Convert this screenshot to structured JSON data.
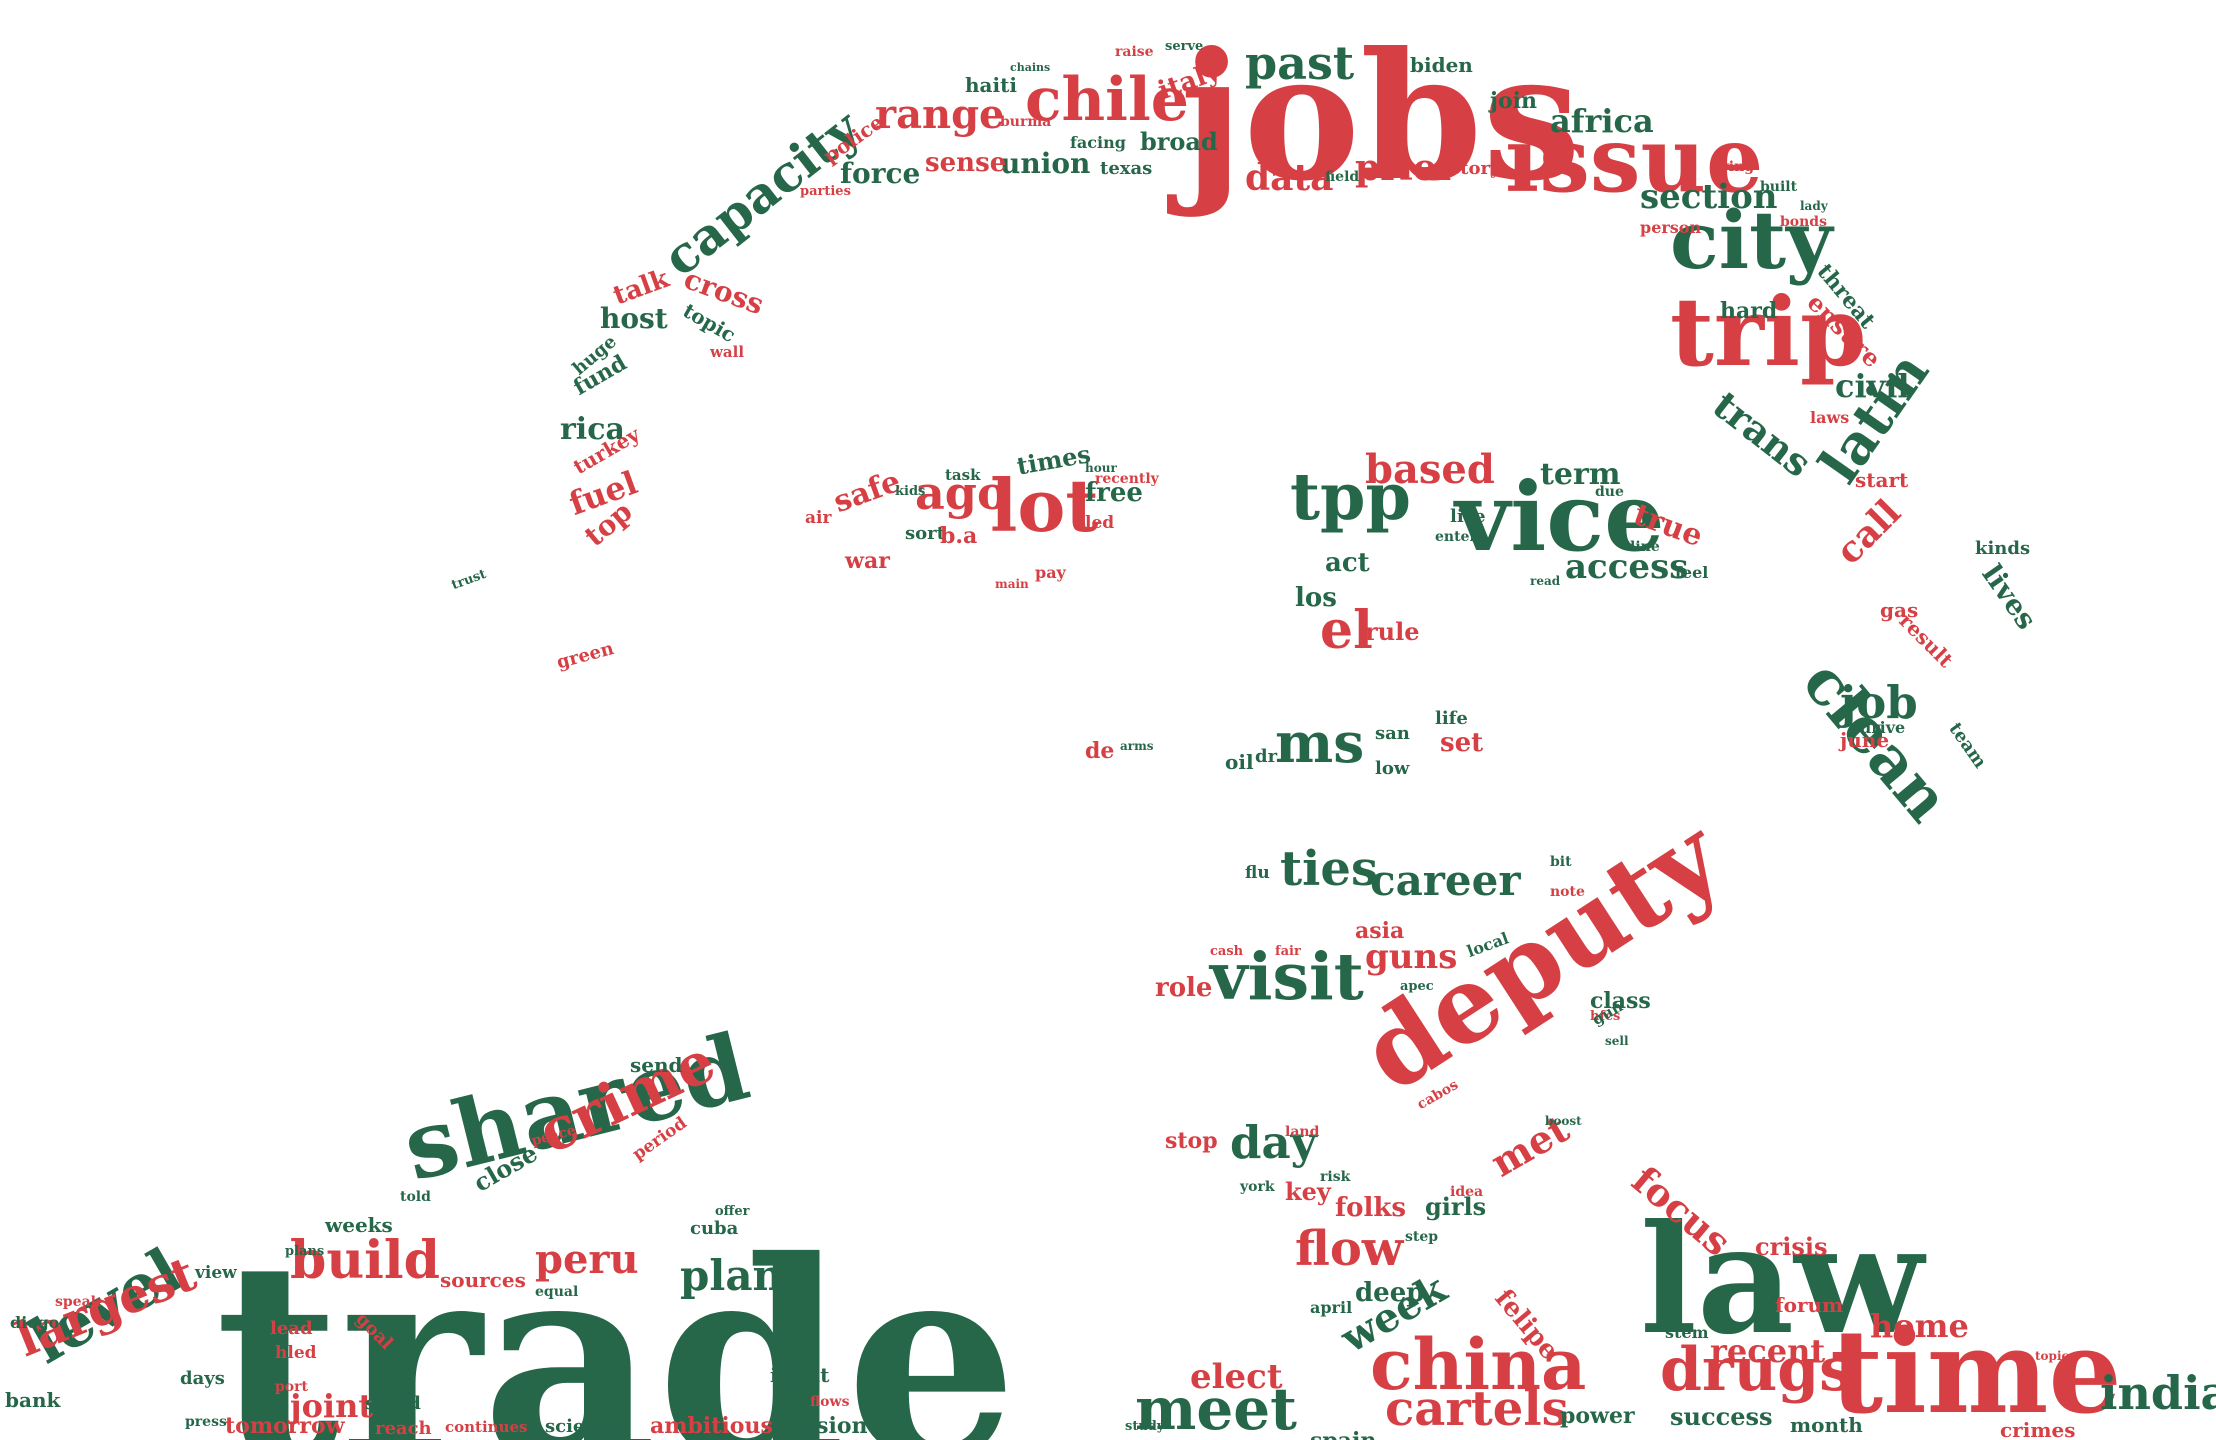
{
  "colors": {
    "red": "#d64045",
    "green": "#26674a"
  },
  "words": [
    {
      "text": "trade",
      "color": "green"
    },
    {
      "text": "jobs",
      "color": "red"
    },
    {
      "text": "deputy",
      "color": "red"
    },
    {
      "text": "law",
      "color": "green"
    },
    {
      "text": "time",
      "color": "red"
    },
    {
      "text": "shared",
      "color": "green"
    },
    {
      "text": "vice",
      "color": "green"
    },
    {
      "text": "issue",
      "color": "red"
    },
    {
      "text": "trip",
      "color": "red"
    },
    {
      "text": "city",
      "color": "green"
    },
    {
      "text": "china",
      "color": "red"
    },
    {
      "text": "visit",
      "color": "green"
    },
    {
      "text": "lot",
      "color": "red"
    },
    {
      "text": "tpp",
      "color": "green"
    },
    {
      "text": "meet",
      "color": "green"
    },
    {
      "text": "chile",
      "color": "red"
    },
    {
      "text": "clean",
      "color": "green"
    },
    {
      "text": "level",
      "color": "green"
    },
    {
      "text": "drugs",
      "color": "red"
    },
    {
      "text": "crime",
      "color": "red"
    },
    {
      "text": "capacity",
      "color": "green"
    },
    {
      "text": "cartels",
      "color": "red"
    },
    {
      "text": "latin",
      "color": "green"
    },
    {
      "text": "largest",
      "color": "red"
    },
    {
      "text": "ms",
      "color": "green"
    },
    {
      "text": "build",
      "color": "red"
    },
    {
      "text": "ties",
      "color": "green"
    },
    {
      "text": "past",
      "color": "green"
    },
    {
      "text": "india",
      "color": "green"
    },
    {
      "text": "flow",
      "color": "red"
    },
    {
      "text": "career",
      "color": "green"
    },
    {
      "text": "based",
      "color": "red"
    },
    {
      "text": "plan",
      "color": "green"
    },
    {
      "text": "peru",
      "color": "red"
    },
    {
      "text": "range",
      "color": "red"
    },
    {
      "text": "ago",
      "color": "red"
    },
    {
      "text": "el",
      "color": "red"
    },
    {
      "text": "data",
      "color": "red"
    },
    {
      "text": "prior",
      "color": "red"
    },
    {
      "text": "section",
      "color": "green"
    },
    {
      "text": "week",
      "color": "green"
    },
    {
      "text": "day",
      "color": "green"
    },
    {
      "text": "met",
      "color": "red"
    },
    {
      "text": "home",
      "color": "red"
    },
    {
      "text": "job",
      "color": "green"
    },
    {
      "text": "access",
      "color": "green"
    },
    {
      "text": "guns",
      "color": "red"
    },
    {
      "text": "trans",
      "color": "green"
    },
    {
      "text": "call",
      "color": "red"
    },
    {
      "text": "focus",
      "color": "red"
    },
    {
      "text": "recent",
      "color": "red"
    },
    {
      "text": "joint",
      "color": "red"
    },
    {
      "text": "africa",
      "color": "green"
    },
    {
      "text": "civil",
      "color": "green"
    },
    {
      "text": "elect",
      "color": "red"
    },
    {
      "text": "ambitious",
      "color": "red"
    },
    {
      "text": "tomorrow",
      "color": "red"
    },
    {
      "text": "success",
      "color": "green"
    },
    {
      "text": "force",
      "color": "green"
    },
    {
      "text": "union",
      "color": "green"
    },
    {
      "text": "sense",
      "color": "red"
    },
    {
      "text": "term",
      "color": "green"
    },
    {
      "text": "true",
      "color": "red"
    },
    {
      "text": "free",
      "color": "green"
    },
    {
      "text": "fuel",
      "color": "red"
    },
    {
      "text": "rica",
      "color": "green"
    },
    {
      "text": "host",
      "color": "green"
    },
    {
      "text": "talk",
      "color": "red"
    },
    {
      "text": "cross",
      "color": "red"
    },
    {
      "text": "safe",
      "color": "red"
    },
    {
      "text": "times",
      "color": "green"
    },
    {
      "text": "act",
      "color": "green"
    },
    {
      "text": "rule",
      "color": "red"
    },
    {
      "text": "set",
      "color": "red"
    },
    {
      "text": "los",
      "color": "green"
    },
    {
      "text": "role",
      "color": "red"
    },
    {
      "text": "asia",
      "color": "red"
    },
    {
      "text": "class",
      "color": "green"
    },
    {
      "text": "folks",
      "color": "red"
    },
    {
      "text": "key",
      "color": "red"
    },
    {
      "text": "girls",
      "color": "green"
    },
    {
      "text": "felipe",
      "color": "red"
    },
    {
      "text": "deep",
      "color": "green"
    },
    {
      "text": "spain",
      "color": "green"
    },
    {
      "text": "power",
      "color": "green"
    },
    {
      "text": "crisis",
      "color": "red"
    },
    {
      "text": "forum",
      "color": "red"
    },
    {
      "text": "month",
      "color": "green"
    },
    {
      "text": "crimes",
      "color": "red"
    },
    {
      "text": "lives",
      "color": "green"
    },
    {
      "text": "kinds",
      "color": "green"
    },
    {
      "text": "june",
      "color": "red"
    },
    {
      "text": "gas",
      "color": "red"
    },
    {
      "text": "result",
      "color": "red"
    },
    {
      "text": "team",
      "color": "green"
    },
    {
      "text": "drive",
      "color": "green"
    },
    {
      "text": "threat",
      "color": "green"
    },
    {
      "text": "ensure",
      "color": "red"
    },
    {
      "text": "hard",
      "color": "green"
    },
    {
      "text": "start",
      "color": "red"
    },
    {
      "text": "laws",
      "color": "red"
    },
    {
      "text": "living",
      "color": "red"
    },
    {
      "text": "bonds",
      "color": "red"
    },
    {
      "text": "built",
      "color": "green"
    },
    {
      "text": "person",
      "color": "red"
    },
    {
      "text": "lady",
      "color": "green"
    },
    {
      "text": "join",
      "color": "green"
    },
    {
      "text": "biden",
      "color": "green"
    },
    {
      "text": "story",
      "color": "red"
    },
    {
      "text": "field",
      "color": "green"
    },
    {
      "text": "italy",
      "color": "red"
    },
    {
      "text": "broad",
      "color": "green"
    },
    {
      "text": "texas",
      "color": "green"
    },
    {
      "text": "facing",
      "color": "green"
    },
    {
      "text": "haiti",
      "color": "green"
    },
    {
      "text": "raise",
      "color": "red"
    },
    {
      "text": "serve",
      "color": "green"
    },
    {
      "text": "burma",
      "color": "red"
    },
    {
      "text": "chains",
      "color": "green"
    },
    {
      "text": "police",
      "color": "red"
    },
    {
      "text": "parties",
      "color": "red"
    },
    {
      "text": "topic",
      "color": "green"
    },
    {
      "text": "wall",
      "color": "red"
    },
    {
      "text": "fund",
      "color": "green"
    },
    {
      "text": "huge",
      "color": "green"
    },
    {
      "text": "turkey",
      "color": "red"
    },
    {
      "text": "top",
      "color": "red"
    },
    {
      "text": "green",
      "color": "red"
    },
    {
      "text": "trust",
      "color": "green"
    },
    {
      "text": "war",
      "color": "red"
    },
    {
      "text": "sort",
      "color": "green"
    },
    {
      "text": "b.a",
      "color": "red"
    },
    {
      "text": "air",
      "color": "red"
    },
    {
      "text": "kids",
      "color": "green"
    },
    {
      "text": "task",
      "color": "green"
    },
    {
      "text": "pay",
      "color": "red"
    },
    {
      "text": "main",
      "color": "red"
    },
    {
      "text": "led",
      "color": "red"
    },
    {
      "text": "recently",
      "color": "red"
    },
    {
      "text": "hour",
      "color": "green"
    },
    {
      "text": "line",
      "color": "green"
    },
    {
      "text": "feel",
      "color": "green"
    },
    {
      "text": "due",
      "color": "green"
    },
    {
      "text": "live",
      "color": "green"
    },
    {
      "text": "enter",
      "color": "green"
    },
    {
      "text": "read",
      "color": "green"
    },
    {
      "text": "life",
      "color": "green"
    },
    {
      "text": "san",
      "color": "green"
    },
    {
      "text": "low",
      "color": "green"
    },
    {
      "text": "oil",
      "color": "green"
    },
    {
      "text": "dr",
      "color": "green"
    },
    {
      "text": "de",
      "color": "red"
    },
    {
      "text": "arms",
      "color": "green"
    },
    {
      "text": "flu",
      "color": "green"
    },
    {
      "text": "bit",
      "color": "green"
    },
    {
      "text": "note",
      "color": "red"
    },
    {
      "text": "local",
      "color": "green"
    },
    {
      "text": "cash",
      "color": "red"
    },
    {
      "text": "fair",
      "color": "red"
    },
    {
      "text": "apec",
      "color": "green"
    },
    {
      "text": "hfcs",
      "color": "red"
    },
    {
      "text": "gun",
      "color": "green"
    },
    {
      "text": "sell",
      "color": "green"
    },
    {
      "text": "stop",
      "color": "red"
    },
    {
      "text": "land",
      "color": "red"
    },
    {
      "text": "risk",
      "color": "green"
    },
    {
      "text": "york",
      "color": "green"
    },
    {
      "text": "idea",
      "color": "red"
    },
    {
      "text": "cabos",
      "color": "red"
    },
    {
      "text": "boost",
      "color": "green"
    },
    {
      "text": "step",
      "color": "green"
    },
    {
      "text": "april",
      "color": "green"
    },
    {
      "text": "send",
      "color": "green"
    },
    {
      "text": "period",
      "color": "red"
    },
    {
      "text": "close",
      "color": "green"
    },
    {
      "text": "peace",
      "color": "red"
    },
    {
      "text": "weeks",
      "color": "green"
    },
    {
      "text": "told",
      "color": "green"
    },
    {
      "text": "plans",
      "color": "green"
    },
    {
      "text": "cuba",
      "color": "green"
    },
    {
      "text": "offer",
      "color": "green"
    },
    {
      "text": "sources",
      "color": "red"
    },
    {
      "text": "equal",
      "color": "green"
    },
    {
      "text": "view",
      "color": "green"
    },
    {
      "text": "lead",
      "color": "red"
    },
    {
      "text": "hled",
      "color": "red"
    },
    {
      "text": "goal",
      "color": "red"
    },
    {
      "text": "stand",
      "color": "green"
    },
    {
      "text": "reach",
      "color": "red"
    },
    {
      "text": "port",
      "color": "red"
    },
    {
      "text": "days",
      "color": "green"
    },
    {
      "text": "press",
      "color": "green"
    },
    {
      "text": "speak",
      "color": "red"
    },
    {
      "text": "diego",
      "color": "green"
    },
    {
      "text": "bank",
      "color": "green"
    },
    {
      "text": "illicit",
      "color": "green"
    },
    {
      "text": "vision",
      "color": "green"
    },
    {
      "text": "science",
      "color": "green"
    },
    {
      "text": "continues",
      "color": "red"
    },
    {
      "text": "flows",
      "color": "red"
    },
    {
      "text": "stem",
      "color": "green"
    },
    {
      "text": "topics",
      "color": "red"
    },
    {
      "text": "study",
      "color": "green"
    }
  ]
}
